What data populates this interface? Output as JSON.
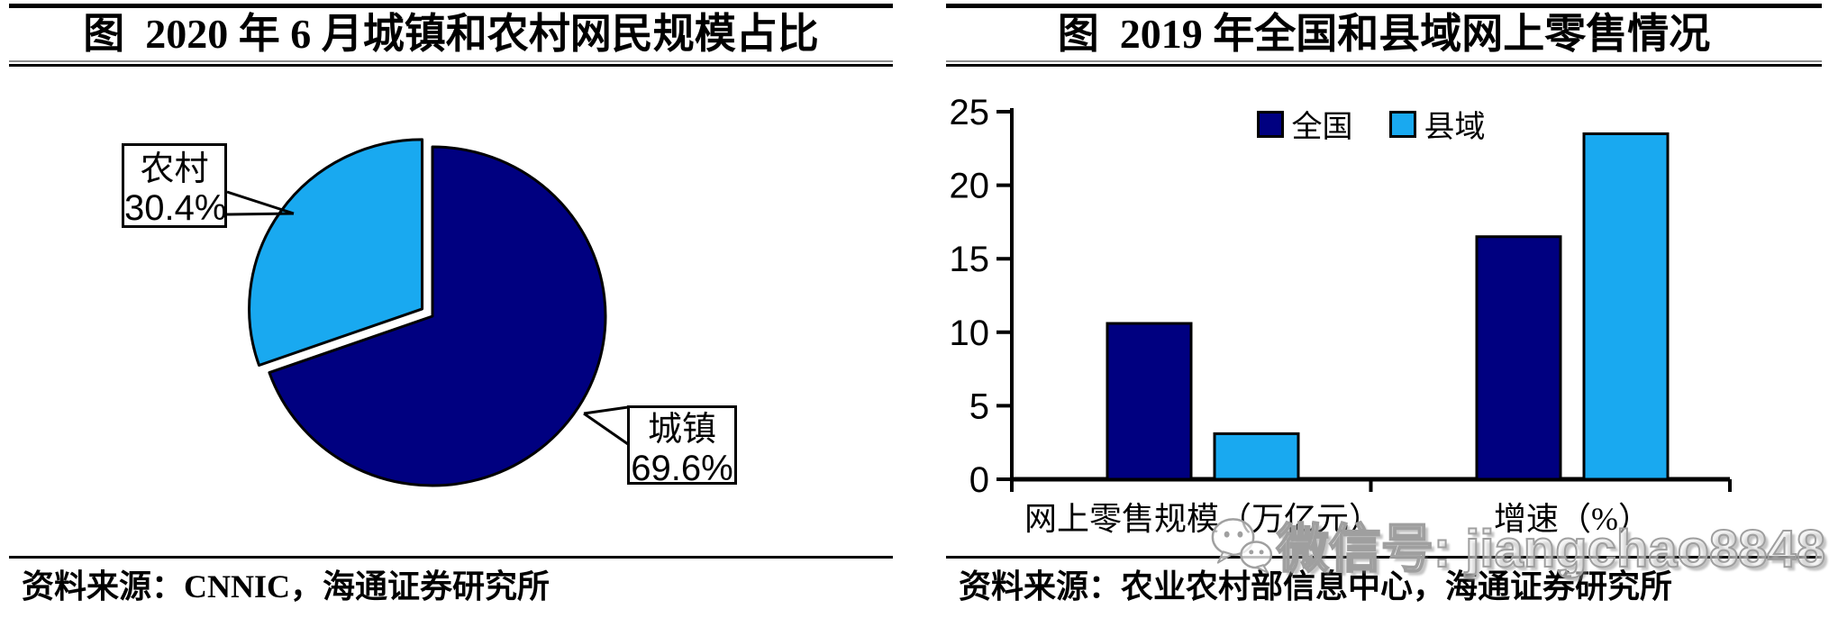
{
  "page": {
    "background": "#ffffff"
  },
  "colors": {
    "dark_blue": "#000080",
    "light_blue": "#19A9F0",
    "outline": "#000000",
    "watermark_gray": "#9f9f9f"
  },
  "panels": {
    "left": {
      "title": "图  2020 年 6 月城镇和农村网民规模占比",
      "callouts": {
        "rural": {
          "label": "农村",
          "value": "30.4%"
        },
        "urban": {
          "label": "城镇",
          "value": "69.6%"
        }
      },
      "source": "资料来源：CNNIC，海通证券研究所"
    },
    "right": {
      "title": "图  2019 年全国和县域网上零售情况",
      "source": "资料来源：农业农村部信息中心，海通证券研究所"
    }
  },
  "watermark": {
    "text": "微信号: jiangchao8848",
    "icon": "wechat-icon"
  },
  "chart_data": [
    {
      "type": "pie",
      "title": "图 2020 年 6 月城镇和农村网民规模占比",
      "unit": "%",
      "start_angle_deg": 0,
      "direction": "clockwise",
      "slices": [
        {
          "label": "城镇",
          "value": 69.6,
          "color": "#000080",
          "exploded": false
        },
        {
          "label": "农村",
          "value": 30.4,
          "color": "#19A9F0",
          "exploded": true
        }
      ],
      "source": "资料来源：CNNIC，海通证券研究所"
    },
    {
      "type": "bar",
      "title": "图 2019 年全国和县域网上零售情况",
      "categories": [
        "网上零售规模（万亿元）",
        "增速（%）"
      ],
      "series": [
        {
          "name": "全国",
          "color": "#000080",
          "values": [
            10.6,
            16.5
          ]
        },
        {
          "name": "县域",
          "color": "#19A9F0",
          "values": [
            3.1,
            23.5
          ]
        }
      ],
      "ylim": [
        0,
        25
      ],
      "yticks": [
        0,
        5,
        10,
        15,
        20,
        25
      ],
      "legend_position": "top-center",
      "grid": false,
      "source": "资料来源：农业农村部信息中心，海通证券研究所"
    }
  ]
}
